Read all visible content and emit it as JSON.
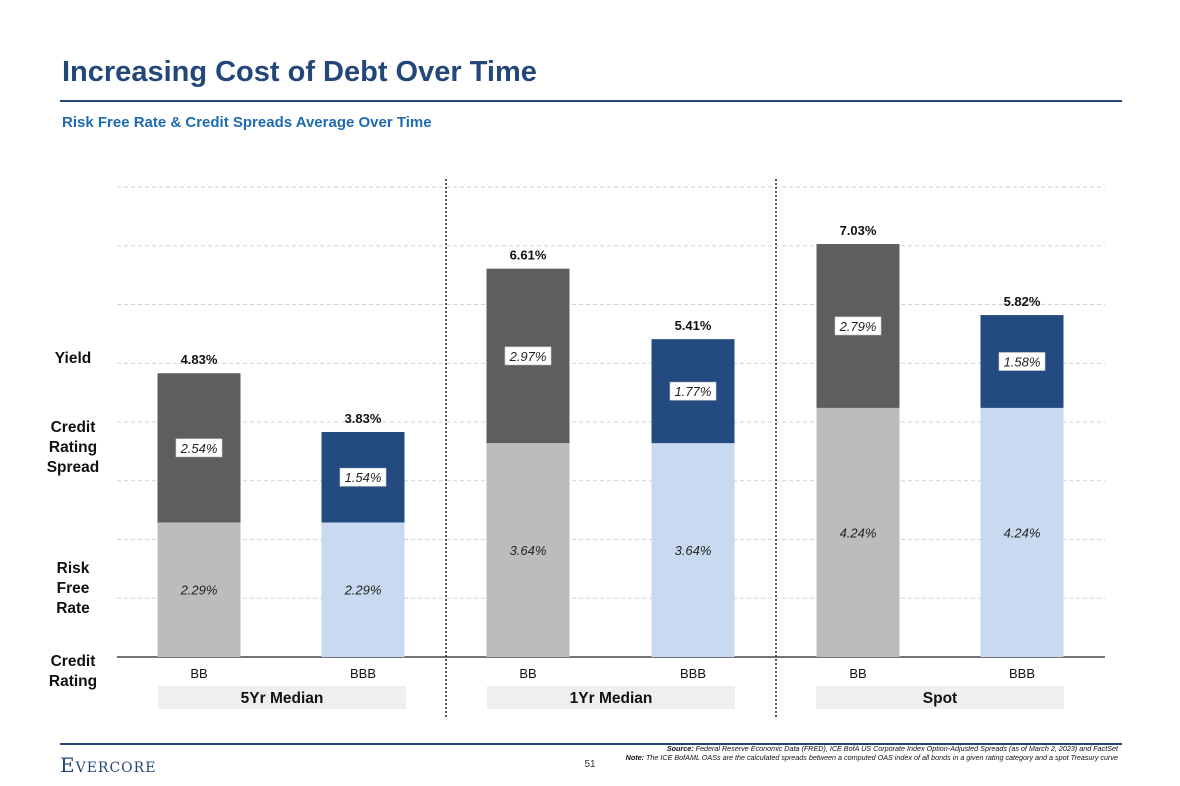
{
  "page": {
    "title": "Increasing Cost of Debt Over Time",
    "subtitle": "Risk Free Rate & Credit Spreads Average Over Time",
    "page_number": "51",
    "logo_text": "Evercore",
    "source_label": "Source:",
    "source_text": "Federal Reserve Economic Data (FRED), ICE BofA US Corporate Index Option-Adjusted Spreads (as of March 2, 2023) and FactSet",
    "note_label": "Note:",
    "note_text": "The ICE BofAML OASs are the calculated spreads between a computed OAS index of all bonds in a given rating category and a spot Treasury curve"
  },
  "row_labels": {
    "yield": "Yield",
    "spread": [
      "Credit",
      "Rating",
      "Spread"
    ],
    "rfr": [
      "Risk",
      "Free",
      "Rate"
    ],
    "rating": [
      "Credit",
      "Rating"
    ]
  },
  "colors": {
    "bb_rfr": "#bcbcbc",
    "bb_spread": "#5e5e5e",
    "bbb_rfr": "#c9d9ef",
    "bbb_spread": "#244b80",
    "title": "#24477a",
    "subtitle": "#1f6bb0"
  },
  "chart_data": {
    "type": "bar",
    "stacked": true,
    "groups": [
      "5Yr Median",
      "1Yr Median",
      "Spot"
    ],
    "categories": [
      "BB",
      "BBB",
      "BB",
      "BBB",
      "BB",
      "BBB"
    ],
    "series": [
      {
        "name": "Risk Free Rate",
        "values": [
          2.29,
          2.29,
          3.64,
          3.64,
          4.24,
          4.24
        ],
        "labels": [
          "2.29%",
          "2.29%",
          "3.64%",
          "3.64%",
          "4.24%",
          "4.24%"
        ]
      },
      {
        "name": "Credit Rating Spread",
        "values": [
          2.54,
          1.54,
          2.97,
          1.77,
          2.79,
          1.58
        ],
        "labels": [
          "2.54%",
          "1.54%",
          "2.97%",
          "1.77%",
          "2.79%",
          "1.58%"
        ]
      }
    ],
    "totals": [
      4.83,
      3.83,
      6.61,
      5.41,
      7.03,
      5.82
    ],
    "total_labels": [
      "4.83%",
      "3.83%",
      "6.61%",
      "5.41%",
      "7.03%",
      "5.82%"
    ],
    "ylim": [
      0,
      8
    ],
    "grid": true,
    "xlabel": "",
    "ylabel": ""
  }
}
